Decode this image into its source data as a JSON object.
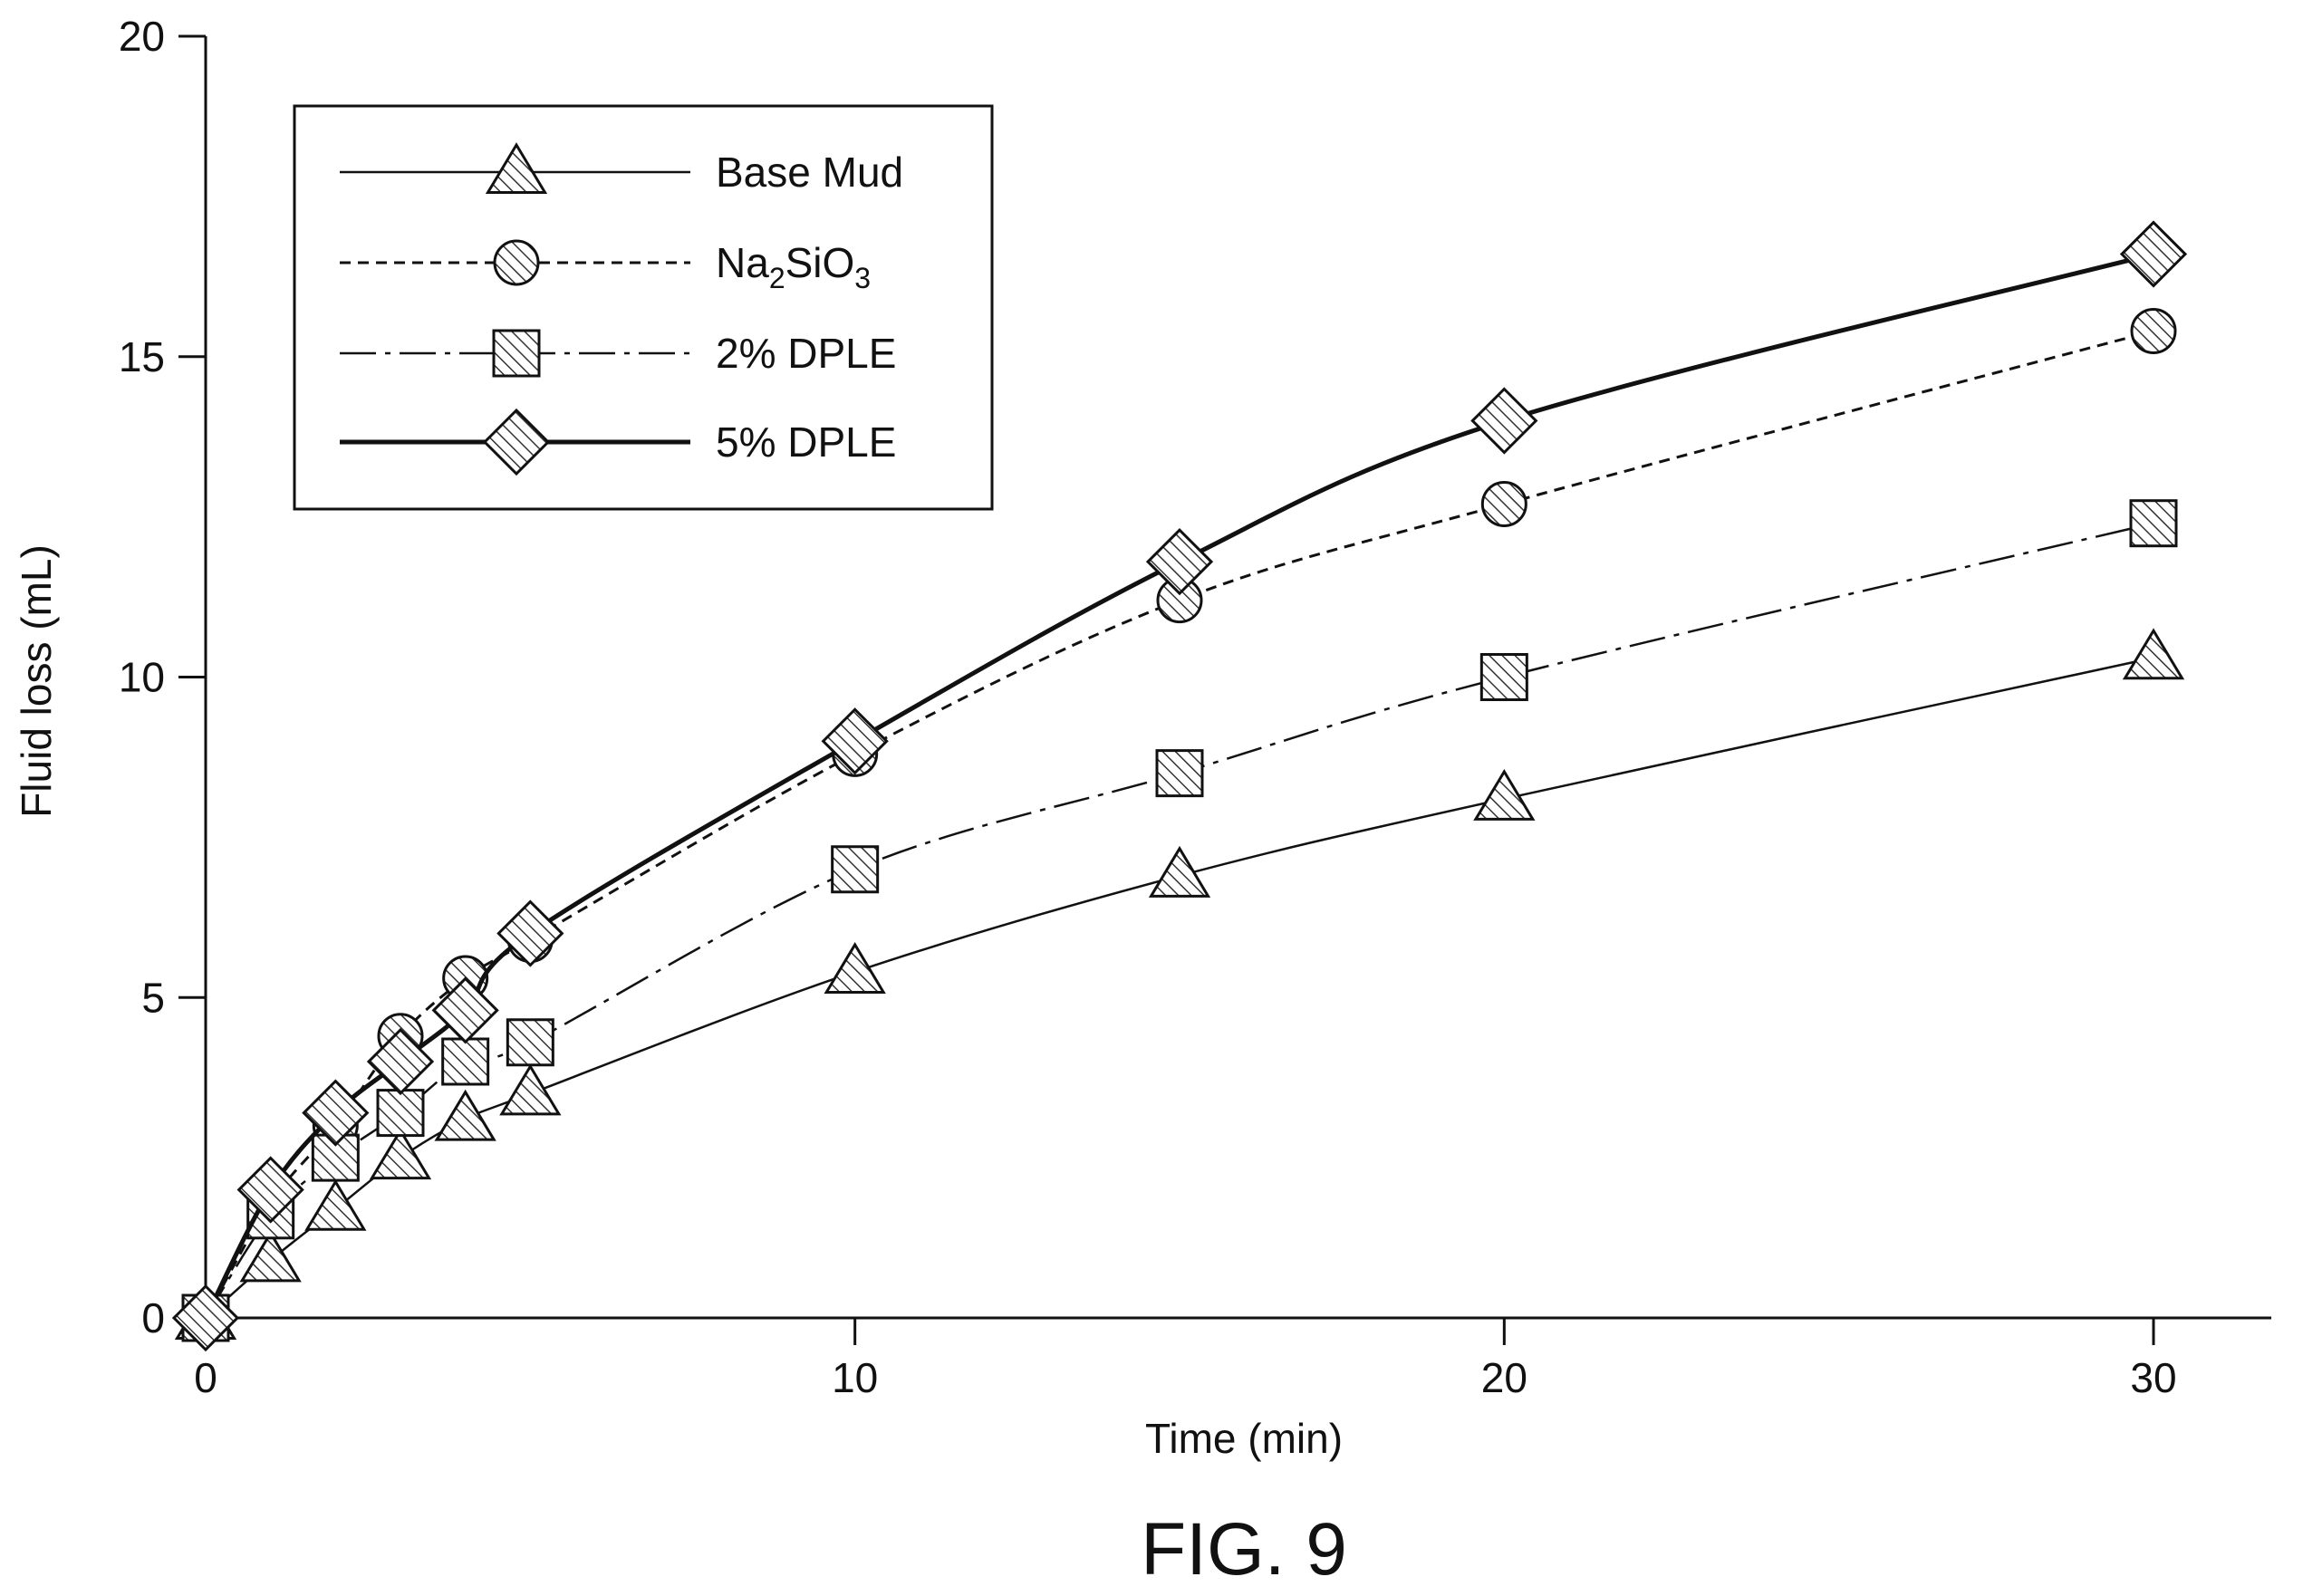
{
  "figure": {
    "caption": "FIG. 9"
  },
  "chart_data": {
    "type": "line",
    "xlabel": "Time (min)",
    "ylabel": "Fluid loss (mL)",
    "xlim": [
      0,
      32
    ],
    "ylim": [
      0,
      20
    ],
    "xticks": [
      0,
      10,
      20,
      30
    ],
    "yticks": [
      0,
      5,
      10,
      15,
      20
    ],
    "grid": false,
    "legend_position": "top-left",
    "x": [
      0,
      1,
      2,
      3,
      4,
      5,
      10,
      15,
      20,
      30
    ],
    "series": [
      {
        "name": "Base Mud",
        "name_sub": "",
        "name_tail": "",
        "marker": "triangle",
        "line_style": "solid-thin",
        "values": [
          0,
          0.9,
          1.7,
          2.5,
          3.1,
          3.5,
          5.4,
          6.9,
          8.1,
          10.3
        ]
      },
      {
        "name": "Na",
        "name_sub": "2",
        "name_tail": "SiO",
        "name_sub2": "3",
        "marker": "circle",
        "line_style": "dashed",
        "values": [
          0,
          1.8,
          3.0,
          4.4,
          5.3,
          5.9,
          8.8,
          11.2,
          12.7,
          15.4
        ]
      },
      {
        "name": "2% DPLE",
        "name_sub": "",
        "name_tail": "",
        "marker": "square",
        "line_style": "dash-dot",
        "values": [
          0,
          1.6,
          2.5,
          3.2,
          4.0,
          4.3,
          7.0,
          8.5,
          10.0,
          12.4
        ]
      },
      {
        "name": "5% DPLE",
        "name_sub": "",
        "name_tail": "",
        "marker": "diamond",
        "line_style": "solid-thick",
        "values": [
          0,
          2.0,
          3.2,
          4.0,
          4.8,
          6.0,
          9.0,
          11.8,
          14.0,
          16.6
        ]
      }
    ]
  }
}
